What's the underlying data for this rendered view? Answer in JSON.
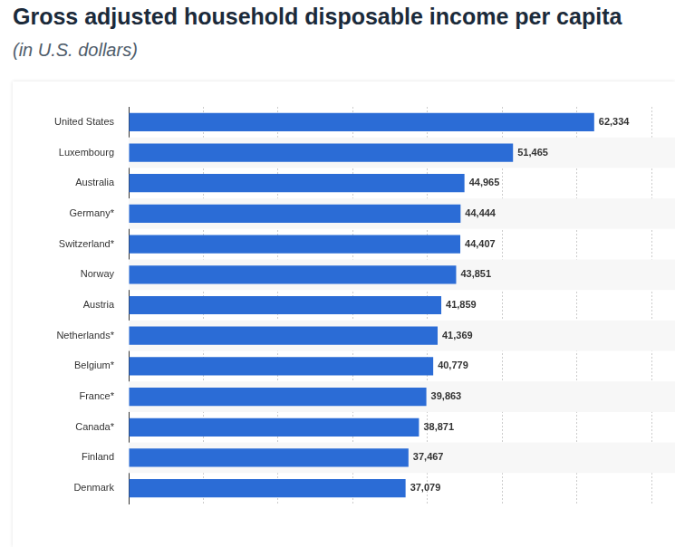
{
  "chart_data": {
    "type": "bar",
    "title": "Gross adjusted household disposable income per capita",
    "subtitle": "(in U.S. dollars)",
    "orientation": "horizontal",
    "categories": [
      "United States",
      "Luxembourg",
      "Australia",
      "Germany*",
      "Switzerland*",
      "Norway",
      "Austria",
      "Netherlands*",
      "Belgium*",
      "France*",
      "Canada*",
      "Finland",
      "Denmark"
    ],
    "values": [
      62334,
      51465,
      44965,
      44444,
      44407,
      43851,
      41859,
      41369,
      40779,
      39863,
      38871,
      37467,
      37079
    ],
    "value_labels": [
      "62,334",
      "51,465",
      "44,965",
      "44,444",
      "44,407",
      "43,851",
      "41,859",
      "41,369",
      "40,779",
      "39,863",
      "38,871",
      "37,467",
      "37,079"
    ],
    "color": "#2b6cd6",
    "xlim": [
      0,
      70000
    ],
    "xticks": [
      0,
      10000,
      20000,
      30000,
      40000,
      50000,
      60000,
      70000
    ],
    "grid": true,
    "data_labels": true,
    "tick_labels": "y"
  }
}
